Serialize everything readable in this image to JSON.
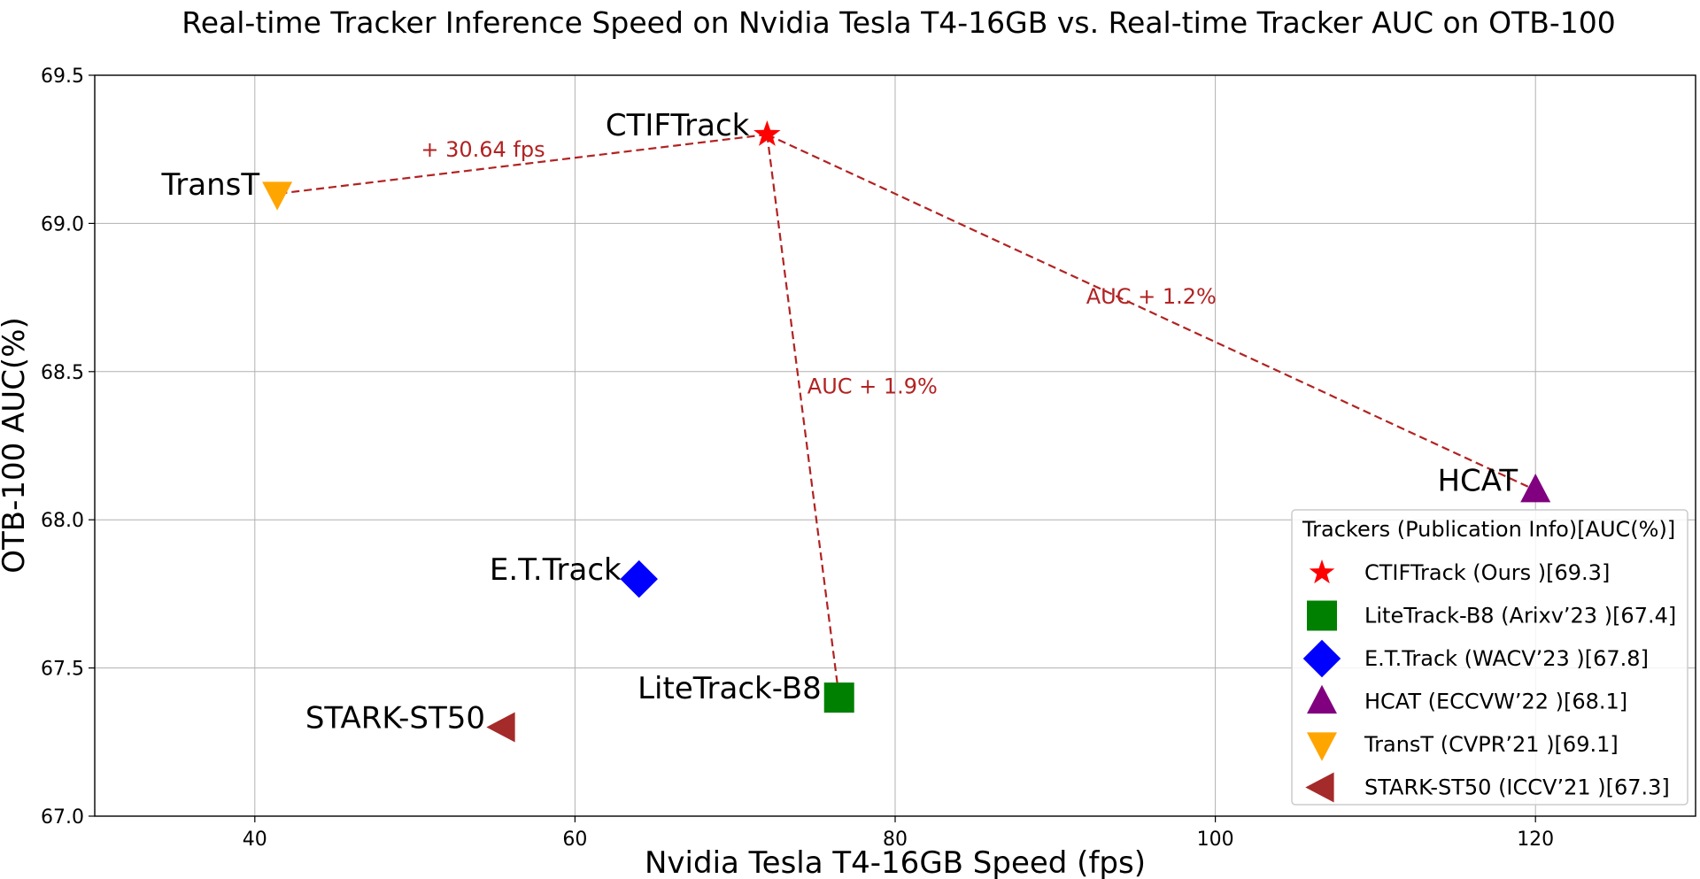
{
  "chart_data": {
    "type": "scatter",
    "title": "Real-time Tracker Inference Speed on Nvidia Tesla T4-16GB vs. Real-time Tracker AUC on OTB-100",
    "xlabel": "Nvidia Tesla T4-16GB Speed (fps)",
    "ylabel": "OTB-100 AUC(%)",
    "xlim": [
      30,
      130
    ],
    "ylim": [
      67.0,
      69.5
    ],
    "xticks": [
      40,
      60,
      80,
      100,
      120
    ],
    "yticks": [
      67.0,
      67.5,
      68.0,
      68.5,
      69.0,
      69.5
    ],
    "grid": true,
    "legend_title": "Trackers (Publication Info)[AUC(%)]",
    "legend_placement": "lower-right",
    "points": [
      {
        "label": "CTIFTrack",
        "legend": "CTIFTrack (Ours )[69.3]",
        "x": 72,
        "y": 69.3,
        "marker": "star",
        "color": "#ff0000"
      },
      {
        "label": "LiteTrack-B8",
        "legend": "LiteTrack-B8 (Arixv’23 )[67.4]",
        "x": 76.5,
        "y": 67.4,
        "marker": "square",
        "color": "#008000"
      },
      {
        "label": "E.T.Track",
        "legend": "E.T.Track (WACV’23 )[67.8]",
        "x": 64,
        "y": 67.8,
        "marker": "diamond",
        "color": "#0000ff"
      },
      {
        "label": "HCAT",
        "legend": "HCAT (ECCVW’22 )[68.1]",
        "x": 120,
        "y": 68.1,
        "marker": "triangle-up",
        "color": "#800080"
      },
      {
        "label": "TransT",
        "legend": "TransT (CVPR’21 )[69.1]",
        "x": 41.4,
        "y": 69.1,
        "marker": "triangle-down",
        "color": "#ffa500"
      },
      {
        "label": "STARK-ST50",
        "legend": "STARK-ST50 (ICCV’21 )[67.3]",
        "x": 55.5,
        "y": 67.3,
        "marker": "triangle-left",
        "color": "#a52a2a"
      }
    ],
    "comparison_lines": [
      {
        "from": [
          72,
          69.3
        ],
        "to": [
          41.4,
          69.1
        ],
        "text": "+ 30.64 fps",
        "color": "#b22222"
      },
      {
        "from": [
          72,
          69.3
        ],
        "to": [
          76.5,
          67.4
        ],
        "text": "AUC + 1.9%",
        "color": "#b22222"
      },
      {
        "from": [
          72,
          69.3
        ],
        "to": [
          120,
          68.1
        ],
        "text": "AUC + 1.2%",
        "color": "#b22222"
      }
    ]
  }
}
